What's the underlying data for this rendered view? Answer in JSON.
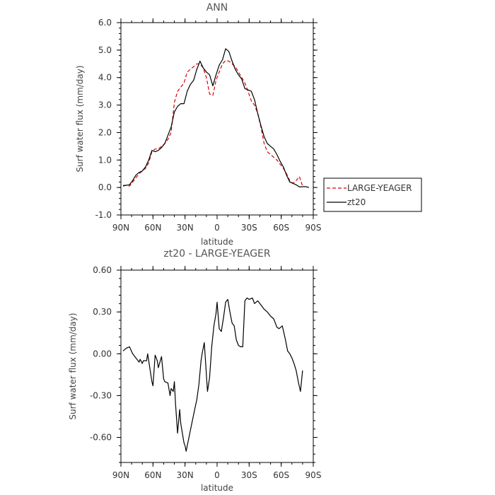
{
  "chart_data": [
    {
      "type": "line",
      "title": "ANN",
      "xlabel": "latitude",
      "ylabel": "Surf water flux (mm/day)",
      "x_tick_labels": [
        "90N",
        "60N",
        "30N",
        "0",
        "30S",
        "60S",
        "90S"
      ],
      "x_tick_values": [
        90,
        60,
        30,
        0,
        -30,
        -60,
        -90
      ],
      "xlim": [
        90,
        -90
      ],
      "y_tick_labels": [
        "-1.0",
        "0.0",
        "1.0",
        "2.0",
        "3.0",
        "4.0",
        "5.0",
        "6.0"
      ],
      "y_tick_values": [
        -1,
        0,
        1,
        2,
        3,
        4,
        5,
        6
      ],
      "ylim": [
        -1,
        6
      ],
      "legend_position": "right",
      "series": [
        {
          "name": "LARGE-YEAGER",
          "color": "#dd0000",
          "dash": "dashed",
          "x": [
            88,
            85,
            82,
            79,
            76,
            73,
            70,
            67,
            64,
            61,
            58,
            55,
            52,
            49,
            46,
            43,
            40,
            37,
            34,
            31,
            28,
            25,
            22,
            19,
            16,
            13,
            10,
            7,
            4,
            1,
            -2,
            -5,
            -8,
            -11,
            -14,
            -17,
            -20,
            -23,
            -26,
            -29,
            -32,
            -35,
            -38,
            -41,
            -44,
            -47,
            -50,
            -53,
            -56,
            -59,
            -62,
            -65,
            -68,
            -71,
            -74,
            -77,
            -80
          ],
          "y": [
            0.05,
            0.08,
            0.05,
            0.2,
            0.35,
            0.5,
            0.6,
            0.7,
            0.9,
            1.3,
            1.4,
            1.4,
            1.5,
            1.6,
            1.75,
            2.0,
            3.1,
            3.5,
            3.65,
            3.8,
            4.2,
            4.3,
            4.4,
            4.5,
            4.5,
            4.35,
            4.0,
            3.4,
            3.35,
            3.9,
            4.2,
            4.5,
            4.62,
            4.6,
            4.5,
            4.4,
            4.2,
            4.0,
            3.8,
            3.5,
            3.15,
            3.0,
            2.7,
            2.2,
            1.6,
            1.3,
            1.2,
            1.1,
            1.0,
            0.85,
            0.7,
            0.5,
            0.25,
            0.15,
            0.25,
            0.4,
            0.05
          ]
        },
        {
          "name": "zt20",
          "color": "#000000",
          "dash": "solid",
          "x": [
            88,
            85,
            82,
            79,
            76,
            73,
            70,
            67,
            64,
            61,
            58,
            55,
            52,
            49,
            46,
            43,
            40,
            37,
            34,
            31,
            28,
            25,
            22,
            19,
            16,
            13,
            10,
            7,
            4,
            1,
            -2,
            -5,
            -8,
            -11,
            -14,
            -17,
            -20,
            -23,
            -26,
            -29,
            -32,
            -35,
            -38,
            -41,
            -44,
            -47,
            -50,
            -53,
            -56,
            -59,
            -62,
            -65,
            -68,
            -71,
            -74,
            -77,
            -80,
            -83,
            -86
          ],
          "y": [
            0.07,
            0.08,
            0.1,
            0.25,
            0.45,
            0.55,
            0.6,
            0.75,
            1.0,
            1.35,
            1.3,
            1.35,
            1.45,
            1.6,
            1.9,
            2.2,
            2.75,
            2.95,
            3.05,
            3.05,
            3.5,
            3.75,
            3.9,
            4.3,
            4.6,
            4.35,
            4.2,
            4.1,
            3.7,
            4.1,
            4.45,
            4.65,
            5.05,
            4.95,
            4.6,
            4.3,
            4.1,
            3.95,
            3.6,
            3.55,
            3.5,
            3.2,
            2.7,
            2.25,
            1.85,
            1.6,
            1.5,
            1.4,
            1.2,
            0.95,
            0.75,
            0.45,
            0.2,
            0.15,
            0.1,
            0.02,
            0.03,
            0.03,
            0.0
          ]
        }
      ]
    },
    {
      "type": "line",
      "title": "zt20 - LARGE-YEAGER",
      "xlabel": "latitude",
      "ylabel": "Surf water flux (mm/day)",
      "x_tick_labels": [
        "90N",
        "60N",
        "30N",
        "0",
        "30S",
        "60S",
        "90S"
      ],
      "x_tick_values": [
        90,
        60,
        30,
        0,
        -30,
        -60,
        -90
      ],
      "xlim": [
        90,
        -90
      ],
      "y_tick_labels": [
        "-0.60",
        "-0.30",
        "0.00",
        "0.30",
        "0.60"
      ],
      "y_tick_values": [
        -0.6,
        -0.3,
        0,
        0.3,
        0.6
      ],
      "ylim": [
        -0.78,
        0.6
      ],
      "series": [
        {
          "name": "",
          "color": "#000000",
          "dash": "solid",
          "x": [
            88,
            85,
            82,
            79,
            76,
            73,
            72,
            70,
            69,
            66,
            65,
            63,
            61,
            60,
            58,
            56,
            55,
            52,
            50,
            49,
            46,
            44,
            43,
            41,
            40,
            39,
            37,
            35,
            34,
            31,
            30,
            29,
            25,
            21,
            19,
            17,
            15,
            14,
            12,
            9,
            7,
            5,
            3,
            1,
            0,
            -2,
            -4,
            -6,
            -8,
            -10,
            -12,
            -14,
            -16,
            -18,
            -20,
            -22,
            -24,
            -26,
            -28,
            -30,
            -33,
            -35,
            -38,
            -41,
            -44,
            -47,
            -50,
            -53,
            -56,
            -58,
            -61,
            -64,
            -66,
            -68,
            -70,
            -72,
            -74,
            -76,
            -78,
            -80
          ],
          "y": [
            0.02,
            0.04,
            0.05,
            0.0,
            -0.03,
            -0.06,
            -0.04,
            -0.07,
            -0.05,
            -0.05,
            0.0,
            -0.1,
            -0.2,
            -0.23,
            -0.01,
            -0.05,
            -0.1,
            -0.02,
            -0.18,
            -0.2,
            -0.21,
            -0.3,
            -0.25,
            -0.27,
            -0.2,
            -0.35,
            -0.57,
            -0.4,
            -0.5,
            -0.64,
            -0.66,
            -0.7,
            -0.55,
            -0.4,
            -0.33,
            -0.22,
            -0.05,
            0.0,
            0.08,
            -0.27,
            -0.17,
            0.05,
            0.2,
            0.29,
            0.37,
            0.18,
            0.16,
            0.26,
            0.37,
            0.39,
            0.3,
            0.22,
            0.2,
            0.1,
            0.06,
            0.05,
            0.05,
            0.38,
            0.4,
            0.39,
            0.4,
            0.36,
            0.38,
            0.35,
            0.32,
            0.3,
            0.27,
            0.25,
            0.19,
            0.18,
            0.2,
            0.1,
            0.02,
            0.0,
            -0.03,
            -0.07,
            -0.12,
            -0.2,
            -0.27,
            -0.12
          ]
        }
      ]
    }
  ]
}
